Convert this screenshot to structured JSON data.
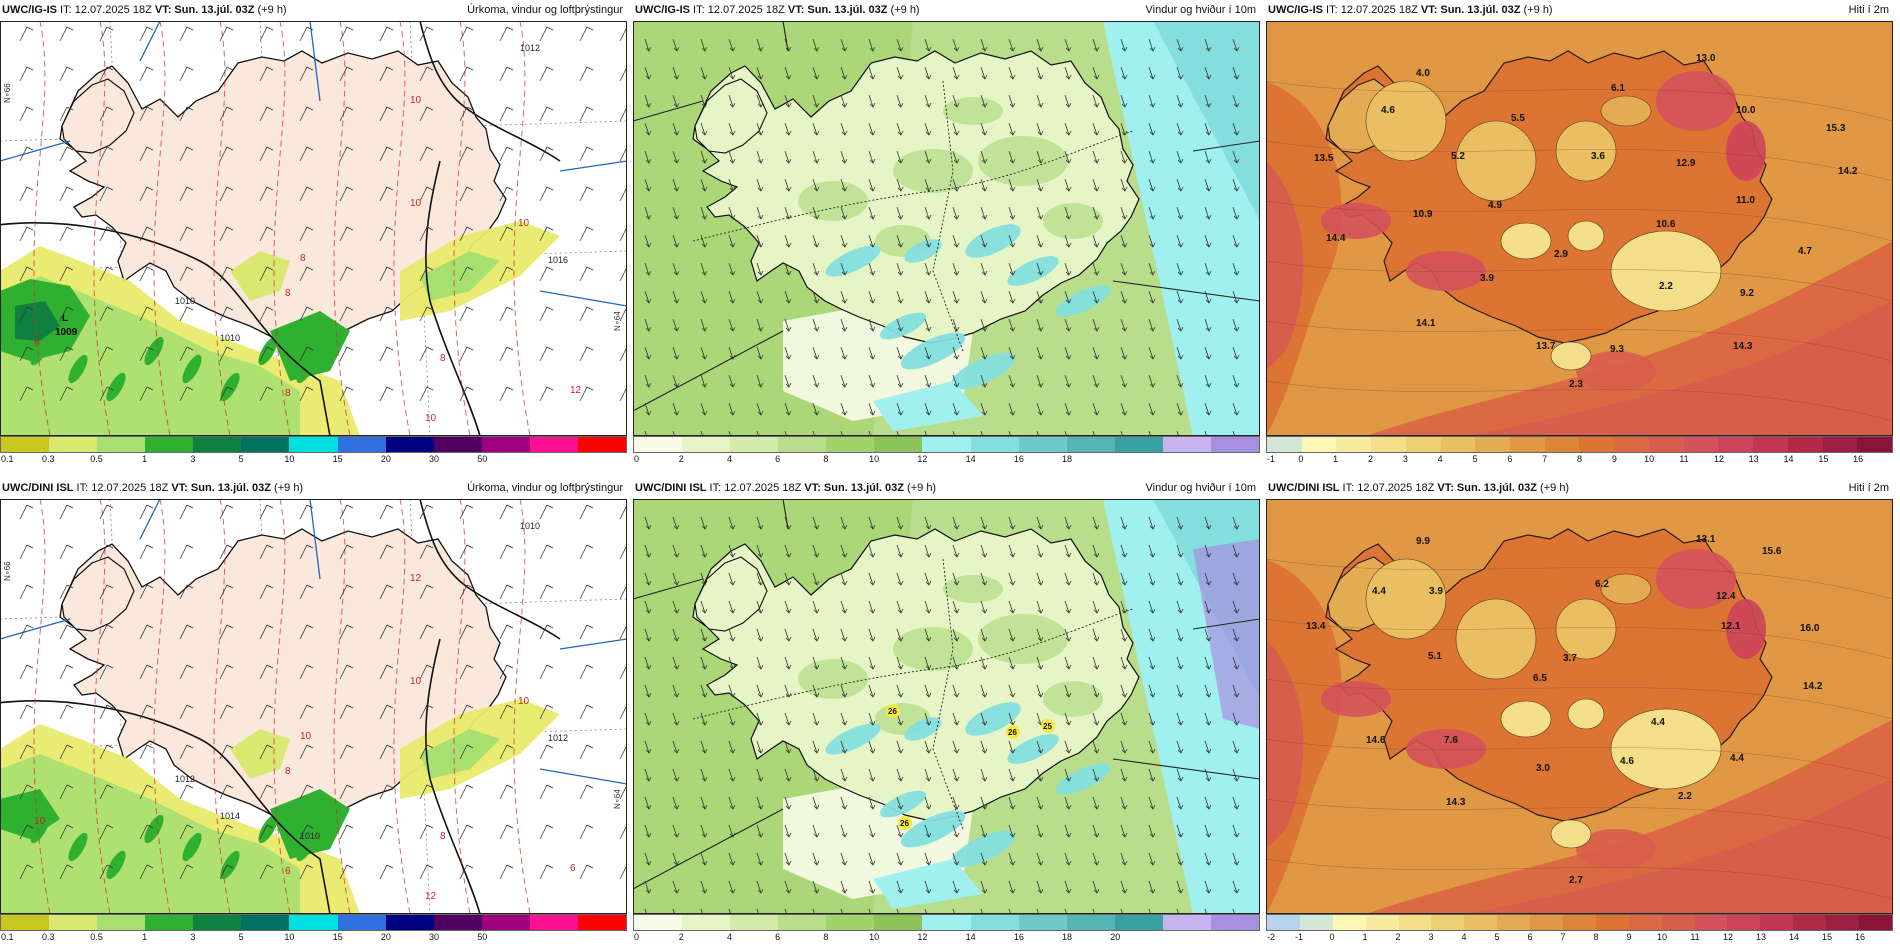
{
  "palette": {
    "precip": [
      "#c8c820",
      "#d8e870",
      "#a8e070",
      "#30b030",
      "#108040",
      "#007060",
      "#00e0e0",
      "#3070e0",
      "#000080",
      "#500060",
      "#a00080",
      "#ff1090",
      "#ff0000"
    ],
    "wind": [
      "#f8fce8",
      "#e6f5c5",
      "#d2ebab",
      "#b8de8c",
      "#a2d26c",
      "#8cc35a",
      "#a0f0f0",
      "#84dede",
      "#6ecaca",
      "#55b4b4",
      "#3aa0a0",
      "#c8b4f0",
      "#a890e0"
    ],
    "temp": [
      "#d4e6d4",
      "#fdf6b4",
      "#f8eba0",
      "#f3df8a",
      "#eed074",
      "#e9bf62",
      "#e4ac52",
      "#e09844",
      "#dd8638",
      "#dc7434",
      "#db6a44",
      "#d85e4c",
      "#d4525a",
      "#cc445a",
      "#c23652",
      "#b02a48",
      "#9c1e40",
      "#8a1438"
    ],
    "temp2": [
      "#b8d4ec",
      "#d4e6d4",
      "#fdf6b4",
      "#f8eba0",
      "#f3df8a",
      "#eed074",
      "#e9bf62",
      "#e4ac52",
      "#e09844",
      "#dd8638",
      "#dc7434",
      "#db6a44",
      "#d85e4c",
      "#d4525a",
      "#cc445a",
      "#c23652",
      "#b02a48",
      "#9c1e40",
      "#8a1438"
    ]
  },
  "panels": [
    {
      "source": "UWC/IG-IS",
      "it": " IT: 12.07.2025 18Z ",
      "vt_label": "VT:",
      "vt_value": " Sun. 13.júl. 03Z",
      "lead": " (+9 h)",
      "title": "Úrkoma, vindur og loftþrýstingur",
      "kind": "precip",
      "ticks": [
        "0.1",
        "0.3",
        "0.5",
        "1",
        "3",
        "5",
        "10",
        "15",
        "20",
        "30",
        "50"
      ],
      "pressure_low": "L",
      "pressure_low_value": "1009",
      "side_label_left": "N∘66",
      "side_label_right": "N∘64",
      "isobar_labels": [
        "1010",
        "1012",
        "1010",
        "1016"
      ],
      "red_labels": [
        "10",
        "10",
        "10",
        "8",
        "8",
        "6",
        "8",
        "12",
        "10",
        "8"
      ]
    },
    {
      "source": "UWC/IG-IS",
      "it": " IT: 12.07.2025 18Z ",
      "vt_label": "VT:",
      "vt_value": " Sun. 13.júl. 03Z",
      "lead": " (+9 h)",
      "title": "Vindur og hviður í 10m",
      "kind": "wind",
      "ticks": [
        "0",
        "2",
        "4",
        "6",
        "8",
        "10",
        "12",
        "14",
        "16",
        "18"
      ],
      "gust_labels": []
    },
    {
      "source": "UWC/IG-IS",
      "it": " IT: 12.07.2025 18Z ",
      "vt_label": "VT:",
      "vt_value": " Sun. 13.júl. 03Z",
      "lead": " (+9 h)",
      "title": "Hiti í 2m",
      "kind": "temp",
      "ticks": [
        "-1",
        "0",
        "1",
        "2",
        "3",
        "4",
        "5",
        "6",
        "7",
        "8",
        "9",
        "10",
        "11",
        "12",
        "13",
        "14",
        "15",
        "16"
      ],
      "temps": [
        "13.0",
        "4.0",
        "4.6",
        "6.1",
        "10.0",
        "5.5",
        "15.3",
        "13.5",
        "5.2",
        "3.6",
        "12.9",
        "14.2",
        "10.9",
        "4.9",
        "11.0",
        "14.4",
        "10.6",
        "2.9",
        "4.7",
        "3.9",
        "2.2",
        "9.2",
        "14.1",
        "13.7",
        "9.3",
        "14.3",
        "2.3"
      ]
    },
    {
      "source": "UWC/DINI ISL",
      "it": " IT: 12.07.2025 18Z ",
      "vt_label": "VT:",
      "vt_value": " Sun. 13.júl. 03Z",
      "lead": " (+9 h)",
      "title": "Úrkoma, vindur og loftþrýstingur",
      "kind": "precip",
      "ticks": [
        "0.1",
        "0.3",
        "0.5",
        "1",
        "3",
        "5",
        "10",
        "15",
        "20",
        "30",
        "50"
      ],
      "side_label_left": "N∘66",
      "side_label_right": "N∘64",
      "isobar_labels": [
        "1012",
        "1010",
        "1014",
        "1012",
        "1010"
      ],
      "red_labels": [
        "12",
        "10",
        "10",
        "10",
        "8",
        "10",
        "6",
        "6",
        "12",
        "8"
      ]
    },
    {
      "source": "UWC/DINI ISL",
      "it": " IT: 12.07.2025 18Z ",
      "vt_label": "VT:",
      "vt_value": " Sun. 13.júl. 03Z",
      "lead": " (+9 h)",
      "title": "Vindur og hviður í 10m",
      "kind": "wind",
      "ticks": [
        "0",
        "2",
        "4",
        "6",
        "8",
        "10",
        "12",
        "14",
        "16",
        "18",
        "20"
      ],
      "gust_labels": [
        "26",
        "26",
        "25",
        "26"
      ]
    },
    {
      "source": "UWC/DINI ISL",
      "it": " IT: 12.07.2025 18Z ",
      "vt_label": "VT:",
      "vt_value": " Sun. 13.júl. 03Z",
      "lead": " (+9 h)",
      "title": "Hiti í 2m",
      "kind": "temp2",
      "ticks": [
        "-2",
        "-1",
        "0",
        "1",
        "2",
        "3",
        "4",
        "5",
        "6",
        "7",
        "8",
        "9",
        "10",
        "11",
        "12",
        "13",
        "14",
        "15",
        "16"
      ],
      "temps": [
        "9.9",
        "13.1",
        "15.6",
        "4.4",
        "3.9",
        "6.2",
        "12.4",
        "13.4",
        "12.1",
        "16.0",
        "5.1",
        "3.7",
        "6.5",
        "14.2",
        "4.4",
        "14.6",
        "7.6",
        "3.0",
        "4.6",
        "4.4",
        "2.2",
        "14.3",
        "2.7"
      ]
    }
  ]
}
